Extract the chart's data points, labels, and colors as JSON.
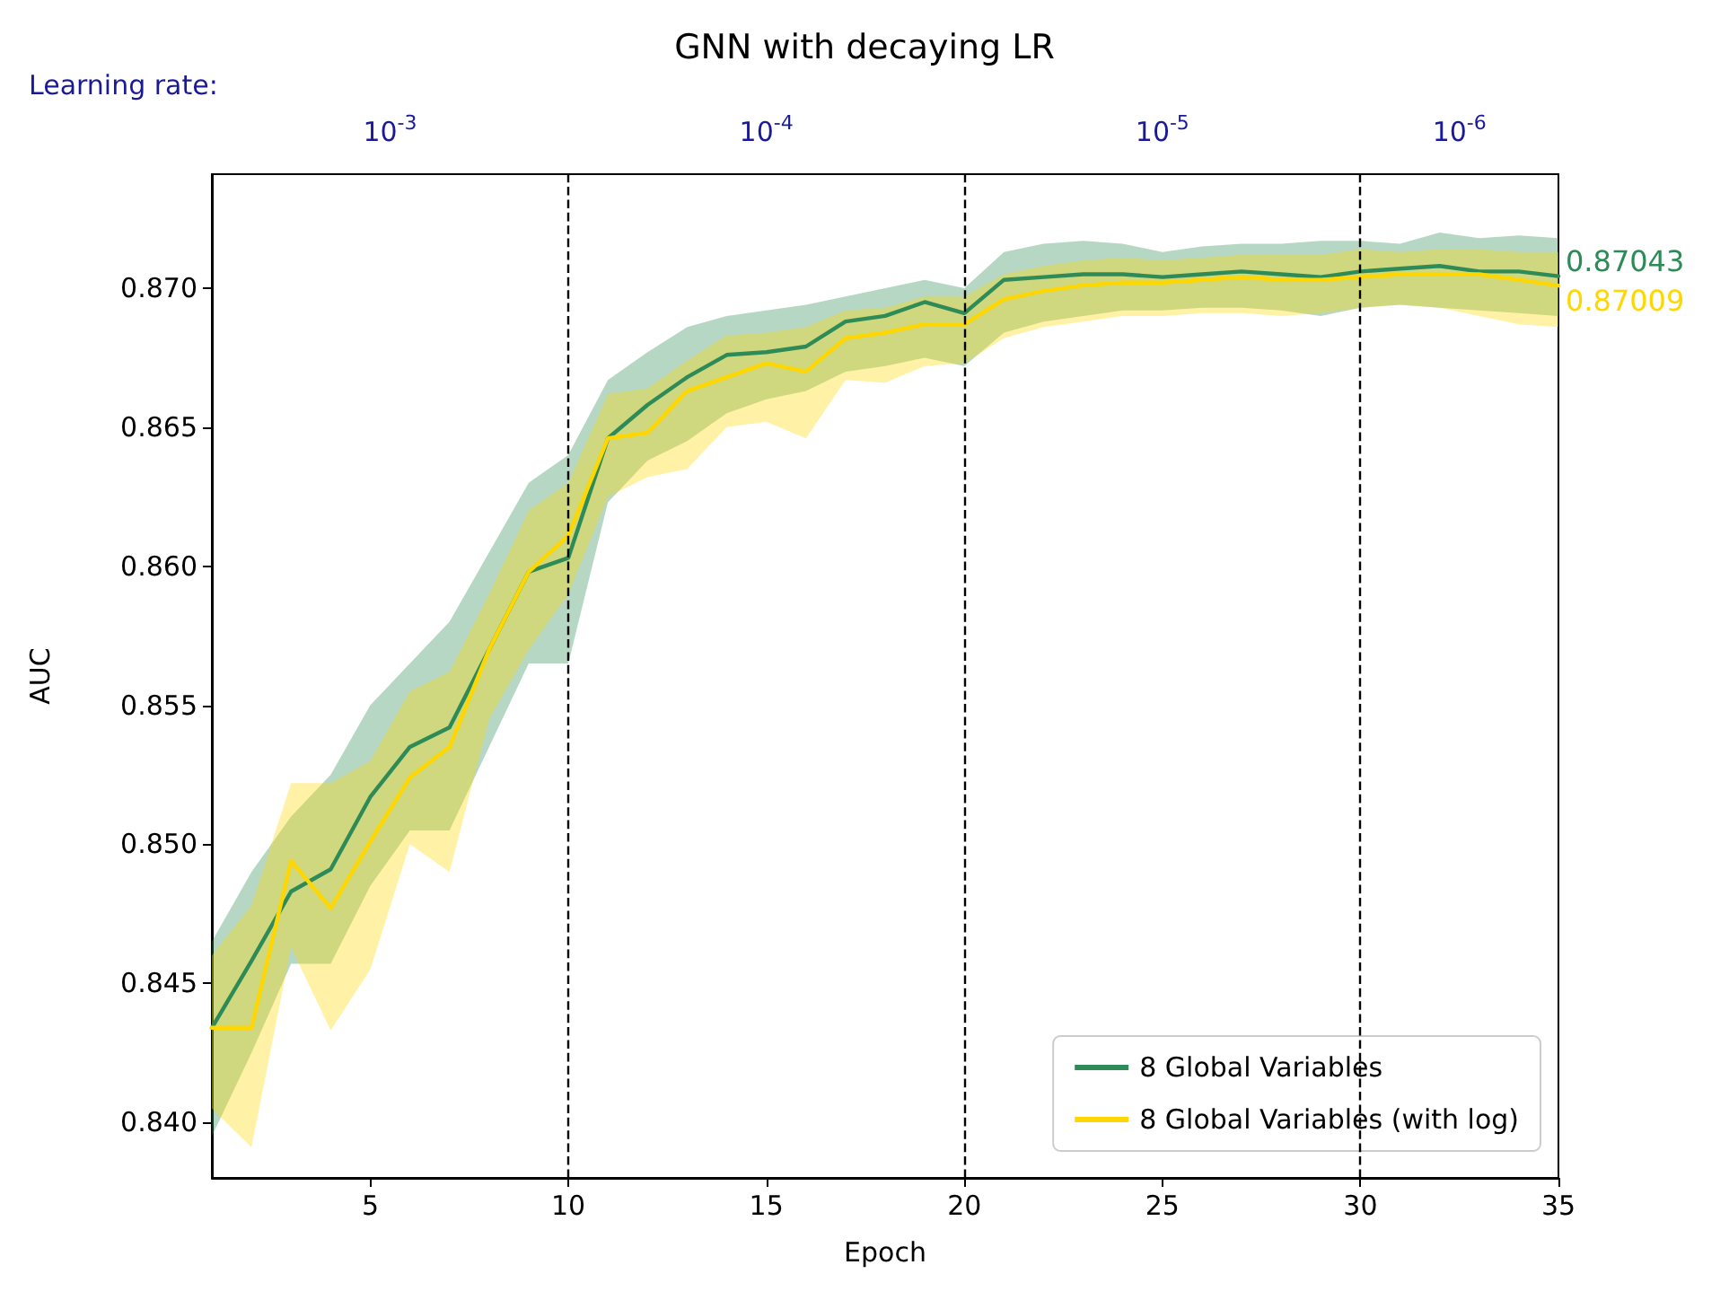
{
  "chart_data": {
    "type": "line",
    "title": "GNN with decaying LR",
    "xlabel": "Epoch",
    "ylabel": "AUC",
    "annotations": [
      "Learning rate:",
      "10$^{-3}$",
      "10$^{-4}$",
      "10$^{-5}$",
      "10$^{-6}$"
    ],
    "x": [
      1,
      2,
      3,
      4,
      5,
      6,
      7,
      8,
      9,
      10,
      11,
      12,
      13,
      14,
      15,
      16,
      17,
      18,
      19,
      20,
      21,
      22,
      23,
      24,
      25,
      26,
      27,
      28,
      29,
      30,
      31,
      32,
      33,
      34,
      35
    ],
    "series": [
      {
        "name": "8 Global Variables",
        "color": "#2e8b57",
        "values": [
          0.8434,
          0.8458,
          0.8483,
          0.8491,
          0.8517,
          0.8535,
          0.8542,
          0.857,
          0.8598,
          0.8603,
          0.8646,
          0.8658,
          0.8668,
          0.8676,
          0.8677,
          0.8679,
          0.8688,
          0.869,
          0.8695,
          0.8691,
          0.8703,
          0.8704,
          0.8705,
          0.8705,
          0.8704,
          0.8705,
          0.8706,
          0.8705,
          0.8704,
          0.8706,
          0.8707,
          0.8708,
          0.8706,
          0.8706,
          0.87043
        ],
        "lower": [
          0.8395,
          0.8425,
          0.8457,
          0.8457,
          0.8485,
          0.8505,
          0.8505,
          0.8535,
          0.8565,
          0.8565,
          0.8623,
          0.8638,
          0.8645,
          0.8655,
          0.866,
          0.8663,
          0.867,
          0.8672,
          0.8675,
          0.8672,
          0.8684,
          0.8688,
          0.869,
          0.8692,
          0.8692,
          0.8693,
          0.8693,
          0.8692,
          0.869,
          0.8693,
          0.8694,
          0.8693,
          0.8692,
          0.8691,
          0.869
        ],
        "upper": [
          0.8465,
          0.849,
          0.851,
          0.8525,
          0.855,
          0.8565,
          0.858,
          0.8605,
          0.863,
          0.864,
          0.8667,
          0.8677,
          0.8686,
          0.869,
          0.8692,
          0.8694,
          0.8697,
          0.87,
          0.8703,
          0.87,
          0.8713,
          0.8716,
          0.8717,
          0.8716,
          0.8713,
          0.8715,
          0.8716,
          0.8716,
          0.8717,
          0.8717,
          0.8716,
          0.872,
          0.8718,
          0.8719,
          0.8718
        ],
        "value_labels": [
          null,
          null,
          null,
          null,
          null,
          null,
          null,
          null,
          null,
          null,
          null,
          null,
          null,
          null,
          null,
          null,
          null,
          null,
          null,
          null,
          null,
          null,
          null,
          null,
          null,
          null,
          null,
          null,
          null,
          null,
          null,
          null,
          null,
          null,
          "0.87043"
        ]
      },
      {
        "name": "8 Global Variables (with log)",
        "color": "#ffd700",
        "values": [
          0.8434,
          0.8434,
          0.8494,
          0.8477,
          0.8501,
          0.8524,
          0.8535,
          0.857,
          0.8598,
          0.8611,
          0.8646,
          0.8648,
          0.8663,
          0.8668,
          0.8673,
          0.867,
          0.8682,
          0.8684,
          0.8687,
          0.8687,
          0.8696,
          0.8699,
          0.8701,
          0.8702,
          0.8702,
          0.8703,
          0.8704,
          0.8703,
          0.8703,
          0.8704,
          0.8705,
          0.8705,
          0.8705,
          0.8703,
          0.87009
        ],
        "lower": [
          0.8405,
          0.8391,
          0.8463,
          0.8433,
          0.8455,
          0.85,
          0.849,
          0.8545,
          0.857,
          0.859,
          0.8625,
          0.8632,
          0.8635,
          0.865,
          0.8652,
          0.8646,
          0.8667,
          0.8666,
          0.8672,
          0.8673,
          0.8682,
          0.8686,
          0.8688,
          0.869,
          0.869,
          0.8691,
          0.8691,
          0.869,
          0.8691,
          0.8693,
          0.8694,
          0.8693,
          0.869,
          0.8687,
          0.8686
        ],
        "upper": [
          0.846,
          0.8478,
          0.8522,
          0.8522,
          0.853,
          0.8555,
          0.8562,
          0.859,
          0.862,
          0.863,
          0.8662,
          0.8664,
          0.8674,
          0.8683,
          0.8684,
          0.8686,
          0.8692,
          0.8693,
          0.8697,
          0.8697,
          0.8705,
          0.8708,
          0.871,
          0.8711,
          0.871,
          0.8711,
          0.8712,
          0.8712,
          0.8712,
          0.8714,
          0.8713,
          0.8714,
          0.8714,
          0.8713,
          0.8713
        ],
        "value_labels": [
          null,
          null,
          null,
          null,
          null,
          null,
          null,
          null,
          null,
          null,
          null,
          null,
          null,
          null,
          null,
          null,
          null,
          null,
          null,
          null,
          null,
          null,
          null,
          null,
          null,
          null,
          null,
          null,
          null,
          null,
          null,
          null,
          null,
          null,
          "0.87009"
        ]
      }
    ],
    "xlim": [
      1,
      35
    ],
    "xticks": [
      5,
      10,
      15,
      20,
      25,
      30,
      35
    ],
    "ylim": [
      0.838,
      0.8741
    ],
    "yticks": [
      {
        "value": 0.84,
        "label": "0.840"
      },
      {
        "value": 0.845,
        "label": "0.845"
      },
      {
        "value": 0.85,
        "label": "0.850"
      },
      {
        "value": 0.855,
        "label": "0.855"
      },
      {
        "value": 0.86,
        "label": "0.860"
      },
      {
        "value": 0.865,
        "label": "0.865"
      },
      {
        "value": 0.87,
        "label": "0.870"
      }
    ],
    "ref_lines": [
      {
        "axis": "x",
        "value": 10,
        "line_style": "dashed",
        "color": "#000000"
      },
      {
        "axis": "x",
        "value": 20,
        "line_style": "dashed",
        "color": "#000000"
      },
      {
        "axis": "x",
        "value": 30,
        "line_style": "dashed",
        "color": "#000000"
      }
    ],
    "grid": false,
    "legend": "bottom right",
    "marker": "none",
    "line_style": "solid"
  }
}
